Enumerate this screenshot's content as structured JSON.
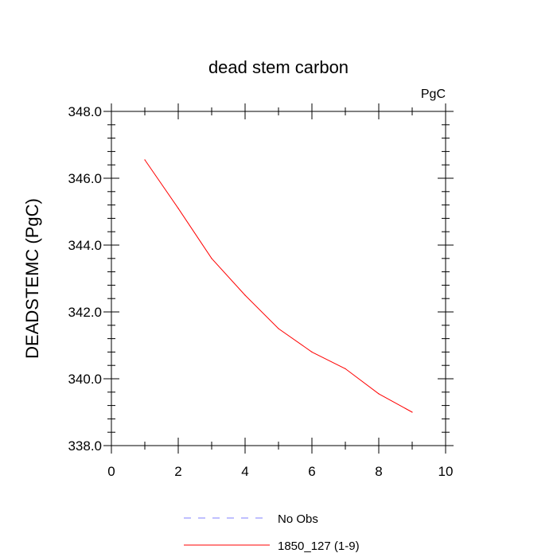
{
  "chart_data": {
    "type": "line",
    "title": "dead stem carbon",
    "units_label": "PgC",
    "ylabel": "DEADSTEMC  (PgC)",
    "xlabel": "",
    "xlim": [
      0,
      10
    ],
    "ylim": [
      338.0,
      348.0
    ],
    "x_ticks": [
      0,
      2,
      4,
      6,
      8,
      10
    ],
    "x_tick_labels": [
      "0",
      "2",
      "4",
      "6",
      "8",
      "10"
    ],
    "y_ticks": [
      338.0,
      340.0,
      342.0,
      344.0,
      346.0,
      348.0
    ],
    "y_tick_labels": [
      "338.0",
      "340.0",
      "342.0",
      "344.0",
      "346.0",
      "348.0"
    ],
    "grid": false,
    "legend_position": "bottom",
    "series": [
      {
        "name": "1850_127 (1-9)",
        "color": "#ff0000",
        "style": "solid",
        "x": [
          1,
          2,
          3,
          4,
          5,
          6,
          7,
          8,
          9
        ],
        "y": [
          346.55,
          345.1,
          343.6,
          342.5,
          341.5,
          340.8,
          340.3,
          339.55,
          339.0
        ]
      }
    ],
    "legend": [
      {
        "label": "No Obs",
        "color": "#8080ff",
        "style": "dashed"
      },
      {
        "label": "1850_127 (1-9)",
        "color": "#ff0000",
        "style": "solid"
      }
    ]
  }
}
